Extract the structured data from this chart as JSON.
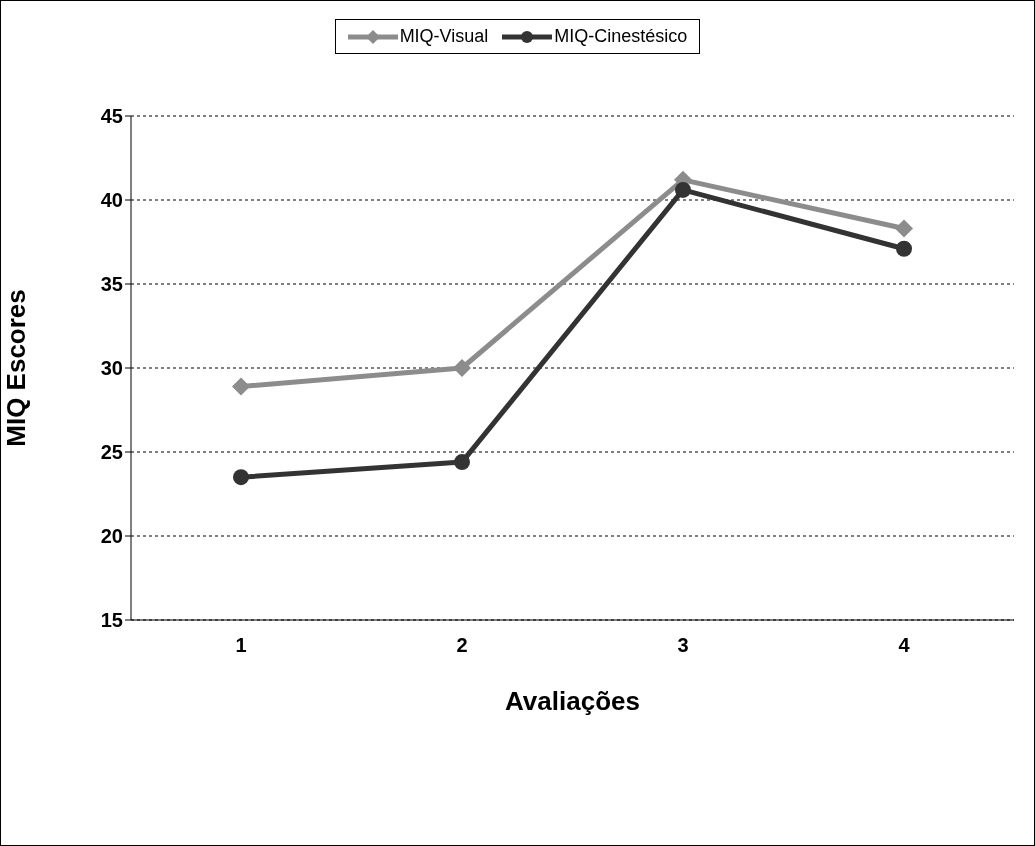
{
  "chart_data": {
    "type": "line",
    "xlabel": "Avaliações",
    "ylabel": "MIQ Escores",
    "categories": [
      "1",
      "2",
      "3",
      "4"
    ],
    "series": [
      {
        "name": "MIQ-Visual",
        "color": "#8c8c8c",
        "marker": "diamond",
        "values": [
          28.9,
          30.0,
          41.2,
          38.3
        ]
      },
      {
        "name": "MIQ-Cinestésico",
        "color": "#333333",
        "marker": "circle",
        "values": [
          23.5,
          24.4,
          40.6,
          37.1
        ]
      }
    ],
    "ylim": [
      15,
      45
    ],
    "yticks": [
      15,
      20,
      25,
      30,
      35,
      40,
      45
    ],
    "grid": "y",
    "legend": "top",
    "line_style": "solid"
  }
}
